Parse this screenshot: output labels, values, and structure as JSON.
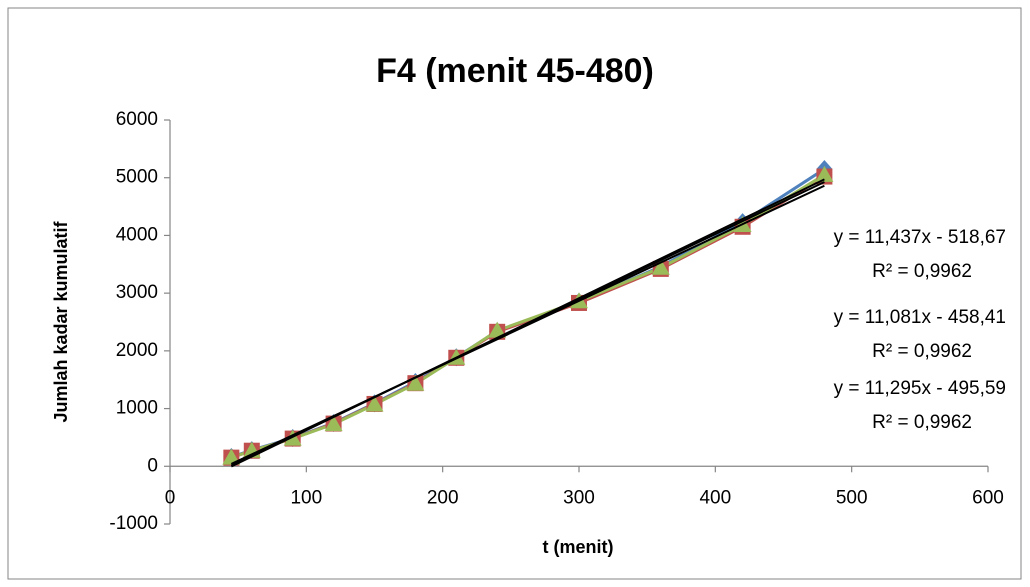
{
  "chart_data": {
    "type": "line",
    "title": "F4 (menit 45-480)",
    "x_label": "t (menit)",
    "y_label": "Jumlah kadar kumulatif",
    "x": [
      45,
      60,
      90,
      120,
      150,
      180,
      210,
      240,
      300,
      360,
      420,
      480
    ],
    "series": [
      {
        "color": "#4f81bd",
        "marker": "diamond",
        "values": [
          160,
          280,
          490,
          750,
          1090,
          1460,
          1890,
          2340,
          2850,
          3460,
          4230,
          5150
        ]
      },
      {
        "color": "#c0504d",
        "marker": "square",
        "values": [
          150,
          270,
          480,
          740,
          1080,
          1440,
          1880,
          2330,
          2830,
          3420,
          4150,
          5020
        ]
      },
      {
        "color": "#9bbb59",
        "marker": "triangle",
        "values": [
          150,
          270,
          480,
          730,
          1070,
          1430,
          1880,
          2350,
          2860,
          3440,
          4180,
          5050
        ]
      }
    ],
    "trendlines": [
      {
        "slope": 11.437,
        "intercept": -518.67,
        "equation": "y = 11,437x - 518,67",
        "r2": "R² = 0,9962"
      },
      {
        "slope": 11.081,
        "intercept": -458.41,
        "equation": "y = 11,081x - 458,41",
        "r2": "R² = 0,9962"
      },
      {
        "slope": 11.295,
        "intercept": -495.59,
        "equation": "y = 11,295x - 495,59",
        "r2": "R² = 0,9962"
      }
    ],
    "trend_color": "#000000",
    "xlim": [
      0,
      600
    ],
    "xticks": [
      0,
      100,
      200,
      300,
      400,
      500,
      600
    ],
    "ylim": [
      -1000,
      6000
    ],
    "yticks": [
      -1000,
      0,
      1000,
      2000,
      3000,
      4000,
      5000,
      6000
    ],
    "grid": false
  }
}
